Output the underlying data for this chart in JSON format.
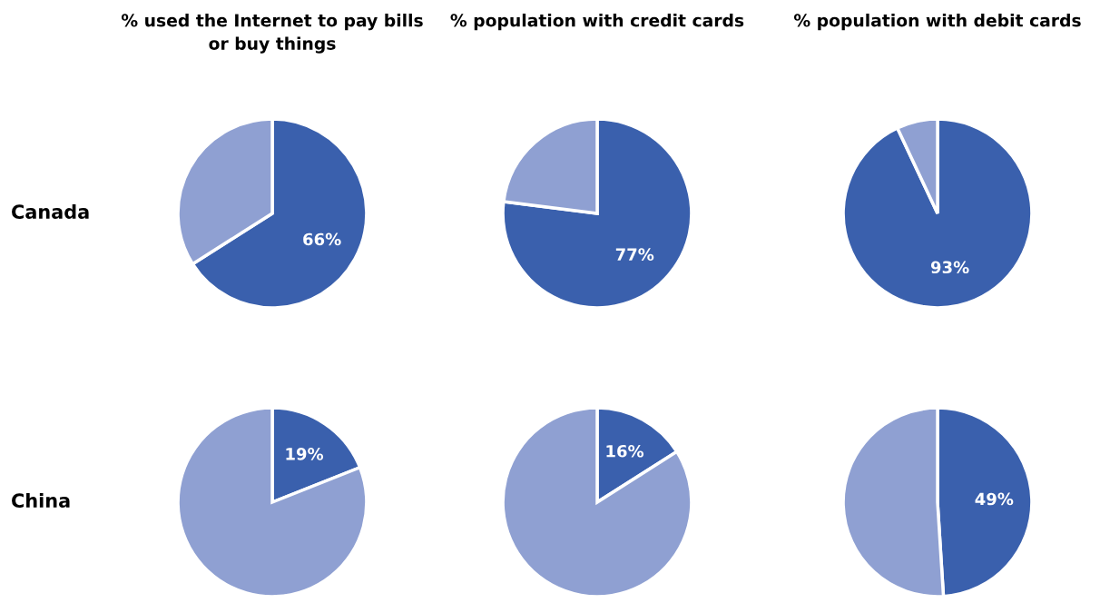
{
  "chart_data": [
    {
      "type": "pie",
      "title": "% used the Internet to pay bills or buy things",
      "ylabel": "Canada",
      "categories": [
        null,
        null
      ],
      "values": [
        66,
        34
      ],
      "colors": [
        "#3a60ad",
        "#8fa0d2"
      ],
      "value_labels": [
        "66%",
        null
      ]
    },
    {
      "type": "pie",
      "title": "% population with credit cards",
      "categories": [
        null,
        null
      ],
      "values": [
        77,
        23
      ],
      "colors": [
        "#3a60ad",
        "#8fa0d2"
      ],
      "value_labels": [
        "77%",
        null
      ]
    },
    {
      "type": "pie",
      "title": "% population with debit cards",
      "categories": [
        null,
        null
      ],
      "values": [
        93,
        7
      ],
      "colors": [
        "#3a60ad",
        "#8fa0d2"
      ],
      "value_labels": [
        "93%",
        null
      ]
    },
    {
      "type": "pie",
      "ylabel": "China",
      "categories": [
        null,
        null
      ],
      "values": [
        19,
        81
      ],
      "colors": [
        "#3a60ad",
        "#8fa0d2"
      ],
      "value_labels": [
        "19%",
        null
      ]
    },
    {
      "type": "pie",
      "categories": [
        null,
        null
      ],
      "values": [
        16,
        84
      ],
      "colors": [
        "#3a60ad",
        "#8fa0d2"
      ],
      "value_labels": [
        "16%",
        null
      ]
    },
    {
      "type": "pie",
      "categories": [
        null,
        null
      ],
      "values": [
        49,
        51
      ],
      "colors": [
        "#3a60ad",
        "#8fa0d2"
      ],
      "value_labels": [
        "49%",
        null
      ]
    }
  ]
}
